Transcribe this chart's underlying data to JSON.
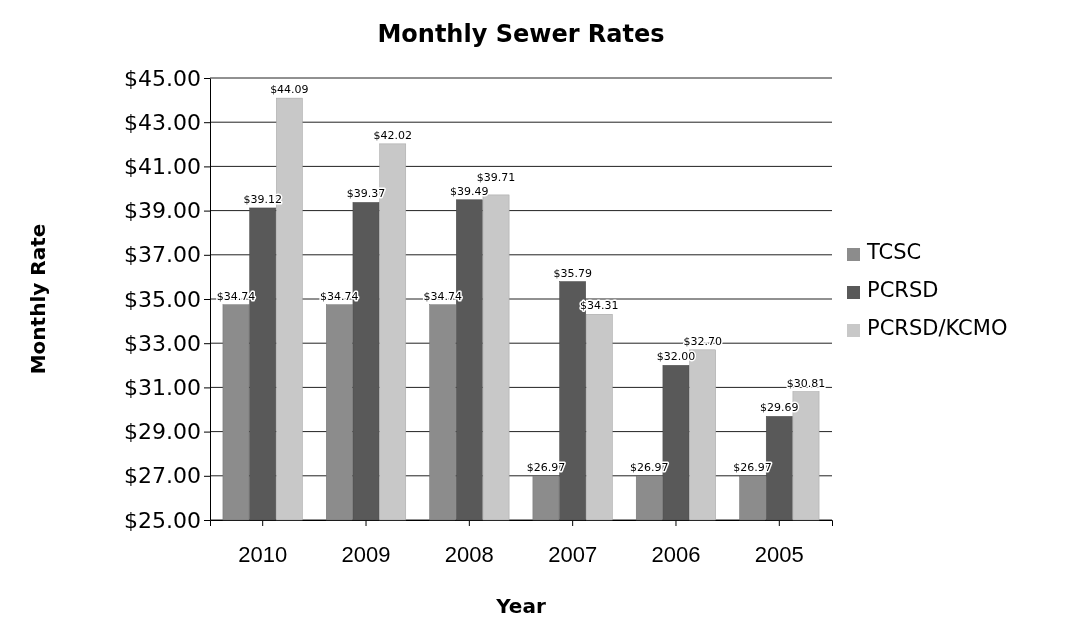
{
  "chart_data": {
    "type": "bar",
    "title": "Monthly Sewer Rates",
    "xlabel": "Year",
    "ylabel": "Monthly Rate",
    "categories": [
      "2010",
      "2009",
      "2008",
      "2007",
      "2006",
      "2005"
    ],
    "series": [
      {
        "name": "TCSC",
        "color": "#8c8c8c",
        "values": [
          34.74,
          34.74,
          34.74,
          26.97,
          26.97,
          26.97
        ],
        "value_labels": [
          "$34.74",
          "$34.74",
          "$34.74",
          "$26.97",
          "$26.97",
          "$26.97"
        ]
      },
      {
        "name": "PCRSD",
        "color": "#595959",
        "values": [
          39.12,
          39.37,
          39.49,
          35.79,
          32.0,
          29.69
        ],
        "value_labels": [
          "$39.12",
          "$39.37",
          "$39.49",
          "$35.79",
          "$32.00",
          "$29.69"
        ]
      },
      {
        "name": "PCRSD/KCMO",
        "color": "#c8c8c8",
        "values": [
          44.09,
          42.02,
          39.71,
          34.31,
          32.7,
          30.81
        ],
        "value_labels": [
          "$44.09",
          "$42.02",
          "$39.71",
          "$34.31",
          "$32.70",
          "$30.81"
        ]
      }
    ],
    "ylim": [
      25,
      45
    ],
    "yticks": [
      {
        "value": 25,
        "label": "$25.00"
      },
      {
        "value": 27,
        "label": "$27.00"
      },
      {
        "value": 29,
        "label": "$29.00"
      },
      {
        "value": 31,
        "label": "$31.00"
      },
      {
        "value": 33,
        "label": "$33.00"
      },
      {
        "value": 35,
        "label": "$35.00"
      },
      {
        "value": 37,
        "label": "$37.00"
      },
      {
        "value": 39,
        "label": "$39.00"
      },
      {
        "value": 41,
        "label": "$41.00"
      },
      {
        "value": 43,
        "label": "$43.00"
      },
      {
        "value": 45,
        "label": "$45.00"
      }
    ],
    "grid": "y",
    "legend": "right"
  }
}
